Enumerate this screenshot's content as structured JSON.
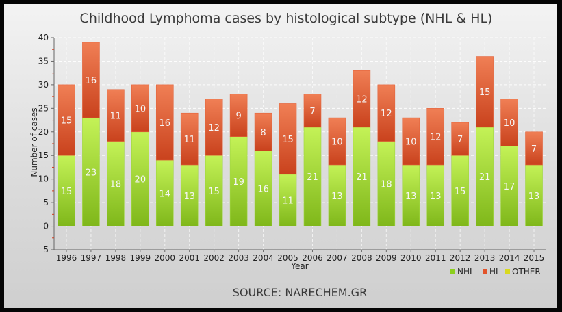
{
  "chart_data": {
    "type": "bar",
    "stacked": true,
    "title": "Childhood Lymphoma cases by histological subtype (NHL & HL)",
    "xlabel": "Year",
    "ylabel": "Number of cases",
    "ylim": [
      -5,
      40
    ],
    "yticks": [
      -5,
      0,
      5,
      10,
      15,
      20,
      25,
      30,
      35,
      40
    ],
    "grid": true,
    "legend_position": "bottom-right",
    "categories": [
      "1996",
      "1997",
      "1998",
      "1999",
      "2000",
      "2001",
      "2002",
      "2003",
      "2004",
      "2005",
      "2006",
      "2007",
      "2008",
      "2009",
      "2010",
      "2011",
      "2012",
      "2013",
      "2014",
      "2015"
    ],
    "series": [
      {
        "name": "NHL",
        "color": "#8ccf1e",
        "values": [
          15,
          23,
          18,
          20,
          14,
          13,
          15,
          19,
          16,
          11,
          21,
          13,
          21,
          18,
          13,
          13,
          15,
          21,
          17,
          13
        ]
      },
      {
        "name": "HL",
        "color": "#e2532a",
        "values": [
          15,
          16,
          11,
          10,
          16,
          11,
          12,
          9,
          8,
          15,
          7,
          10,
          12,
          12,
          10,
          12,
          7,
          15,
          10,
          7
        ]
      },
      {
        "name": "OTHER",
        "color": "#d9d91e",
        "values": [
          0,
          0,
          0,
          0,
          0,
          0,
          0,
          0,
          0,
          0,
          0,
          0,
          0,
          0,
          0,
          0,
          0,
          0,
          0,
          0
        ]
      }
    ],
    "source": "SOURCE: NARECHEM.GR"
  },
  "colors": {
    "nhl_top": "#c4f257",
    "nhl_bottom": "#7fb71a",
    "hl_top": "#f07f55",
    "hl_bottom": "#c9421d",
    "label": "#f6f6f6"
  }
}
